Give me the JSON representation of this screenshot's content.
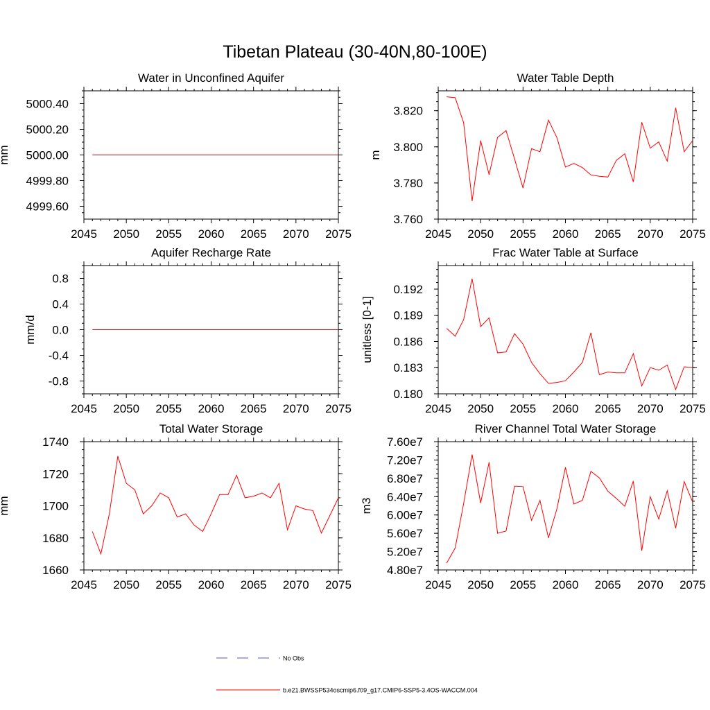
{
  "figure": {
    "title": "Tibetan Plateau (30-40N,80-100E)",
    "legend": [
      {
        "label": "No Obs",
        "color": "#5a5ab4",
        "style": "dashed"
      },
      {
        "label": "b.e21.BWSSP534oscmip6.f09_g17.CMIP6-SSP5-3.4OS-WACCM.004",
        "color": "#ff0000",
        "style": "solid"
      }
    ],
    "line_color": "#ff0000"
  },
  "chart_data": [
    {
      "type": "line",
      "title": "Water in Unconfined Aquifer",
      "xlabel": "",
      "ylabel": "mm",
      "xlim": [
        2045,
        2075
      ],
      "ylim": [
        4999.5,
        5000.5
      ],
      "xticks": [
        "2045",
        "2050",
        "2055",
        "2060",
        "2065",
        "2070",
        "2075"
      ],
      "yticks": [
        4999.6,
        4999.8,
        5000.0,
        5000.2,
        5000.4
      ],
      "ytick_labels": [
        "4999.60",
        "4999.80",
        "5000.00",
        "5000.20",
        "5000.40"
      ],
      "x": [
        2046,
        2047,
        2048,
        2049,
        2050,
        2051,
        2052,
        2053,
        2054,
        2055,
        2056,
        2057,
        2058,
        2059,
        2060,
        2061,
        2062,
        2063,
        2064,
        2065,
        2066,
        2067,
        2068,
        2069,
        2070,
        2071,
        2072,
        2073,
        2074,
        2075
      ],
      "series": [
        {
          "values": [
            5000.0,
            5000.0,
            5000.0,
            5000.0,
            5000.0,
            5000.0,
            5000.0,
            5000.0,
            5000.0,
            5000.0,
            5000.0,
            5000.0,
            5000.0,
            5000.0,
            5000.0,
            5000.0,
            5000.0,
            5000.0,
            5000.0,
            5000.0,
            5000.0,
            5000.0,
            5000.0,
            5000.0,
            5000.0,
            5000.0,
            5000.0,
            5000.0,
            5000.0,
            5000.0
          ]
        }
      ]
    },
    {
      "type": "line",
      "title": "Water Table Depth",
      "xlabel": "",
      "ylabel": "m",
      "xlim": [
        2045,
        2075
      ],
      "ylim": [
        3.76,
        3.831
      ],
      "xticks": [
        "2045",
        "2050",
        "2055",
        "2060",
        "2065",
        "2070",
        "2075"
      ],
      "yticks": [
        3.76,
        3.78,
        3.8,
        3.82
      ],
      "ytick_labels": [
        "3.760",
        "3.780",
        "3.800",
        "3.820"
      ],
      "x": [
        2046,
        2047,
        2048,
        2049,
        2050,
        2051,
        2052,
        2053,
        2054,
        2055,
        2056,
        2057,
        2058,
        2059,
        2060,
        2061,
        2062,
        2063,
        2064,
        2065,
        2066,
        2067,
        2068,
        2069,
        2070,
        2071,
        2072,
        2073,
        2074,
        2075
      ],
      "series": [
        {
          "values": [
            3.8277,
            3.8272,
            3.8133,
            3.77,
            3.8035,
            3.7846,
            3.8052,
            3.809,
            3.7933,
            3.7772,
            3.799,
            3.7973,
            3.8148,
            3.805,
            3.7888,
            3.7908,
            3.7885,
            3.7845,
            3.7837,
            3.7833,
            3.7925,
            3.7962,
            3.7806,
            3.8136,
            3.7993,
            3.8027,
            3.7921,
            3.8216,
            3.7973,
            3.8035
          ]
        }
      ]
    },
    {
      "type": "line",
      "title": "Aquifer Recharge Rate",
      "xlabel": "",
      "ylabel": "mm/d",
      "xlim": [
        2045,
        2075
      ],
      "ylim": [
        -1.0,
        1.0
      ],
      "xticks": [
        "2045",
        "2050",
        "2055",
        "2060",
        "2065",
        "2070",
        "2075"
      ],
      "yticks": [
        -0.8,
        -0.4,
        0.0,
        0.4,
        0.8
      ],
      "ytick_labels": [
        "-0.8",
        "-0.4",
        "0.0",
        "0.4",
        "0.8"
      ],
      "x": [
        2046,
        2047,
        2048,
        2049,
        2050,
        2051,
        2052,
        2053,
        2054,
        2055,
        2056,
        2057,
        2058,
        2059,
        2060,
        2061,
        2062,
        2063,
        2064,
        2065,
        2066,
        2067,
        2068,
        2069,
        2070,
        2071,
        2072,
        2073,
        2074,
        2075
      ],
      "series": [
        {
          "values": [
            0.0,
            0.0,
            0.0,
            0.0,
            0.0,
            0.0,
            0.0,
            0.0,
            0.0,
            0.0,
            0.0,
            0.0,
            0.0,
            0.0,
            0.0,
            0.0,
            0.0,
            0.0,
            0.0,
            0.0,
            0.0,
            0.0,
            0.0,
            0.0,
            0.0,
            0.0,
            0.0,
            0.0,
            0.0,
            0.0
          ]
        }
      ]
    },
    {
      "type": "line",
      "title": "Frac Water Table at Surface",
      "xlabel": "",
      "ylabel": "unitless [0-1]",
      "xlim": [
        2045,
        2075
      ],
      "ylim": [
        0.18,
        0.1947
      ],
      "xticks": [
        "2045",
        "2050",
        "2055",
        "2060",
        "2065",
        "2070",
        "2075"
      ],
      "yticks": [
        0.18,
        0.183,
        0.186,
        0.189,
        0.192
      ],
      "ytick_labels": [
        "0.180",
        "0.183",
        "0.186",
        "0.189",
        "0.192"
      ],
      "x": [
        2046,
        2047,
        2048,
        2049,
        2050,
        2051,
        2052,
        2053,
        2054,
        2055,
        2056,
        2057,
        2058,
        2059,
        2060,
        2061,
        2062,
        2063,
        2064,
        2065,
        2066,
        2067,
        2068,
        2069,
        2070,
        2071,
        2072,
        2073,
        2074,
        2075
      ],
      "series": [
        {
          "values": [
            0.1875,
            0.1866,
            0.1885,
            0.1932,
            0.1877,
            0.1887,
            0.1847,
            0.1848,
            0.1869,
            0.1857,
            0.1836,
            0.1823,
            0.1812,
            0.1813,
            0.1815,
            0.1825,
            0.1836,
            0.187,
            0.1822,
            0.1825,
            0.1824,
            0.1824,
            0.1846,
            0.1809,
            0.183,
            0.1827,
            0.1833,
            0.1805,
            0.1831,
            0.183
          ]
        }
      ]
    },
    {
      "type": "line",
      "title": "Total Water Storage",
      "xlabel": "",
      "ylabel": "mm",
      "xlim": [
        2045,
        2075
      ],
      "ylim": [
        1660,
        1740
      ],
      "xticks": [
        "2045",
        "2050",
        "2055",
        "2060",
        "2065",
        "2070",
        "2075"
      ],
      "yticks": [
        1660,
        1680,
        1700,
        1720,
        1740
      ],
      "ytick_labels": [
        "1660",
        "1680",
        "1700",
        "1720",
        "1740"
      ],
      "x": [
        2046,
        2047,
        2048,
        2049,
        2050,
        2051,
        2052,
        2053,
        2054,
        2055,
        2056,
        2057,
        2058,
        2059,
        2060,
        2061,
        2062,
        2063,
        2064,
        2065,
        2066,
        2067,
        2068,
        2069,
        2070,
        2071,
        2072,
        2073,
        2074,
        2075
      ],
      "series": [
        {
          "values": [
            1684,
            1670,
            1695,
            1731,
            1714,
            1710,
            1695,
            1700,
            1708,
            1705,
            1693,
            1695,
            1688,
            1684,
            1695,
            1707,
            1707,
            1719,
            1705,
            1706,
            1708,
            1705,
            1714,
            1685,
            1700,
            1698,
            1697,
            1683,
            1694,
            1705
          ]
        }
      ]
    },
    {
      "type": "line",
      "title": "River Channel Total Water Storage",
      "xlabel": "",
      "ylabel": "m3",
      "xlim": [
        2045,
        2075
      ],
      "ylim": [
        48000000.0,
        76000000.0
      ],
      "xticks": [
        "2045",
        "2050",
        "2055",
        "2060",
        "2065",
        "2070",
        "2075"
      ],
      "yticks": [
        48000000.0,
        52000000.0,
        56000000.0,
        60000000.0,
        64000000.0,
        68000000.0,
        72000000.0,
        76000000.0
      ],
      "ytick_labels": [
        "4.80e7",
        "5.20e7",
        "5.60e7",
        "6.00e7",
        "6.40e7",
        "6.80e7",
        "7.20e7",
        "7.60e7"
      ],
      "x": [
        2046,
        2047,
        2048,
        2049,
        2050,
        2051,
        2052,
        2053,
        2054,
        2055,
        2056,
        2057,
        2058,
        2059,
        2060,
        2061,
        2062,
        2063,
        2064,
        2065,
        2066,
        2067,
        2068,
        2069,
        2070,
        2071,
        2072,
        2073,
        2074,
        2075
      ],
      "series": [
        {
          "values": [
            49500000.0,
            52800000.0,
            62500000.0,
            73200000.0,
            62600000.0,
            71500000.0,
            56000000.0,
            56500000.0,
            66300000.0,
            66200000.0,
            58800000.0,
            63200000.0,
            55000000.0,
            61400000.0,
            70400000.0,
            62400000.0,
            63200000.0,
            69500000.0,
            68100000.0,
            65200000.0,
            63600000.0,
            61900000.0,
            67400000.0,
            52200000.0,
            64000000.0,
            59100000.0,
            65300000.0,
            57100000.0,
            67300000.0,
            62800000.0
          ]
        }
      ]
    }
  ]
}
